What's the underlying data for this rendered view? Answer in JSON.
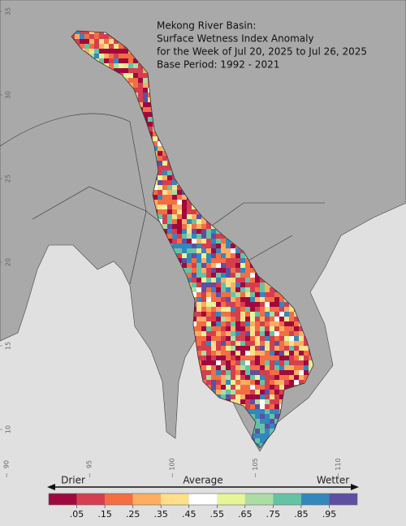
{
  "map": {
    "title_lines": [
      "Mekong River Basin:",
      "Surface Wetness Index Anomaly",
      "for the Week of Jul 20, 2025 to Jul 26, 2025",
      "Base Period: 1992 - 2021"
    ],
    "ylim": [
      7.04,
      35.68
    ],
    "yticks": [
      10,
      15,
      20,
      25,
      30,
      35
    ],
    "xlim": [
      89.6,
      114.1
    ],
    "xticks": [
      90,
      95,
      100,
      105,
      110
    ]
  },
  "colorbar": {
    "captions": [
      "Drier",
      "Average",
      "Wetter"
    ],
    "lim": [
      -0.05,
      1.05
    ],
    "colors": [
      "#a0093f",
      "#d53e4f",
      "#f46d43",
      "#fdae61",
      "#fee08b",
      "#ffffff",
      "#e6f598",
      "#abdda4",
      "#66c2a5",
      "#3288bd",
      "#5e4fa2"
    ],
    "ticks": [
      {
        "value": 0.05,
        "label": ".05"
      },
      {
        "value": 0.15,
        "label": ".15"
      },
      {
        "value": 0.25,
        "label": ".25"
      },
      {
        "value": 0.35,
        "label": ".35"
      },
      {
        "value": 0.45,
        "label": ".45"
      },
      {
        "value": 0.55,
        "label": ".55"
      },
      {
        "value": 0.65,
        "label": ".65"
      },
      {
        "value": 0.75,
        "label": ".75"
      },
      {
        "value": 0.85,
        "label": ".85"
      },
      {
        "value": 0.95,
        "label": ".95"
      }
    ]
  }
}
